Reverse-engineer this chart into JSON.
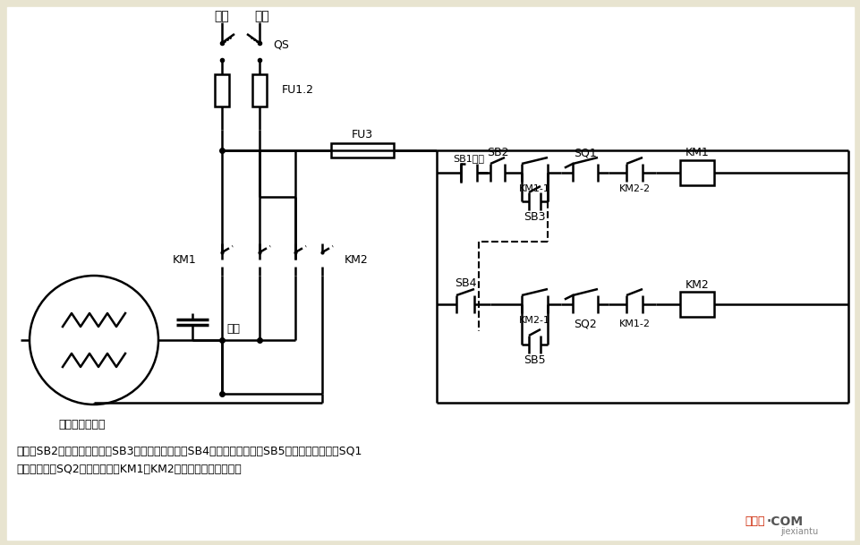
{
  "bg_color": "#e8e4d0",
  "line_color": "#000000",
  "label_motor": "单相电容电动机",
  "label_capacitor": "电容",
  "label_huoxian": "火线",
  "label_lingxian": "零线",
  "label_QS": "QS",
  "label_FU12": "FU1.2",
  "label_FU3": "FU3",
  "label_SB1": "SB1停止",
  "label_SB2": "SB2",
  "label_SB3": "SB3",
  "label_SB4": "SB4",
  "label_SB5": "SB5",
  "label_KM1": "KM1",
  "label_KM2": "KM2",
  "label_KM1_1": "KM1-1",
  "label_KM2_1": "KM2-1",
  "label_KM1_2": "KM1-2",
  "label_KM2_2": "KM2-2",
  "label_SQ1": "SQ1",
  "label_SQ2": "SQ2",
  "label_KM1_right": "KM1",
  "label_KM2_right": "KM2",
  "note_line1": "说明：SB2为上升启动按钮，SB3为上升点动按钮，SB4为下降启动按钮，SB5为下降点动按钮；SQ1",
  "note_line2": "为最高限位，SQ2为最低限位。KM1、KM2可用中间继电器代替。",
  "wm_text": "接线图",
  "wm_com": "·COM",
  "wm_sub": "jiexiantu"
}
